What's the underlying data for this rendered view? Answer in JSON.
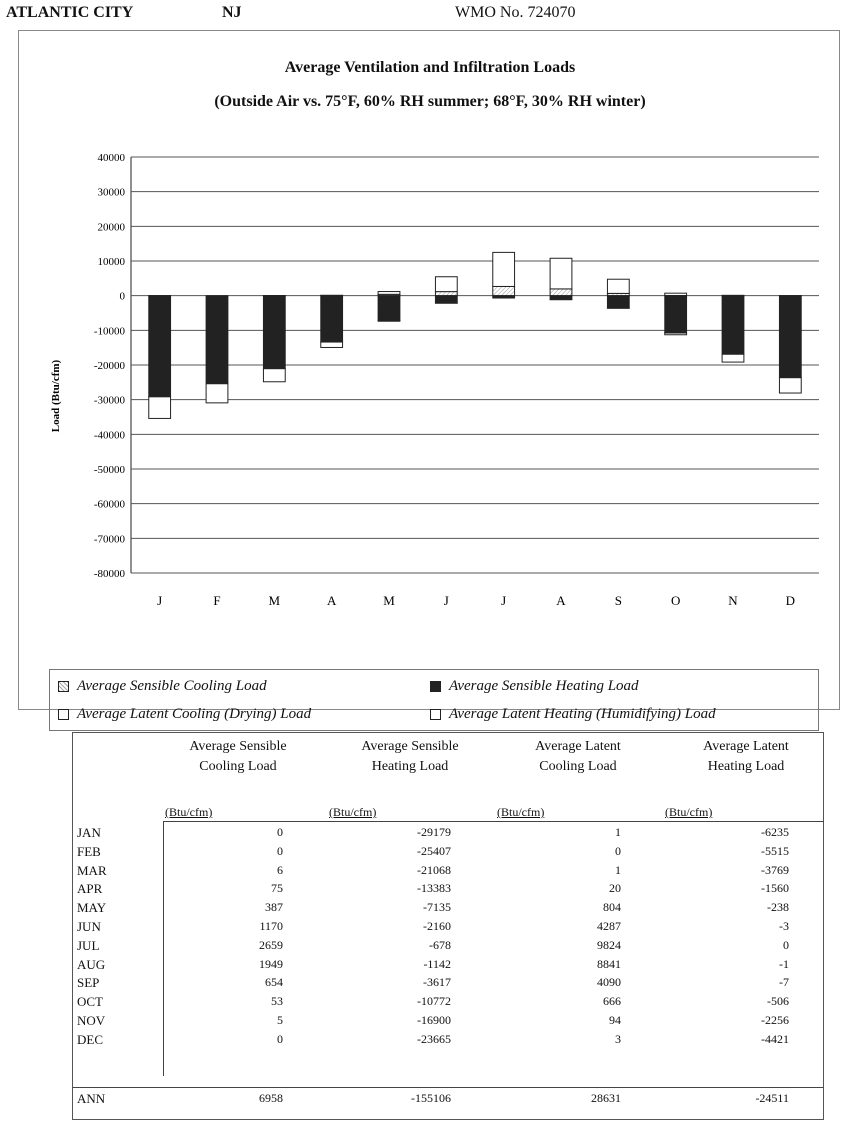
{
  "header": {
    "city": "ATLANTIC CITY",
    "state": "NJ",
    "wmo": "WMO No. 724070"
  },
  "chart_data": {
    "type": "bar",
    "title": "Average Ventilation and Infiltration Loads",
    "subtitle": "(Outside Air vs. 75°F, 60% RH summer; 68°F, 30% RH winter)",
    "ylabel": "Load (Btu/cfm)",
    "xlabel": "",
    "ylim": [
      -80000,
      40000
    ],
    "yticks": [
      "40000",
      "30000",
      "20000",
      "10000",
      "0",
      "-10000",
      "-20000",
      "-30000",
      "-40000",
      "-50000",
      "-60000",
      "-70000",
      "-80000"
    ],
    "categories": [
      "J",
      "F",
      "M",
      "A",
      "M",
      "J",
      "J",
      "A",
      "S",
      "O",
      "N",
      "D"
    ],
    "stacked": true,
    "grid": true,
    "legend_position": "bottom",
    "series": [
      {
        "name": "Average Sensible Cooling Load",
        "fill": "hatch",
        "values": [
          0,
          0,
          6,
          75,
          387,
          1170,
          2659,
          1949,
          654,
          53,
          5,
          0
        ]
      },
      {
        "name": "Average Latent Cooling (Drying) Load",
        "fill": "white",
        "values": [
          1,
          0,
          1,
          20,
          804,
          4287,
          9824,
          8841,
          4090,
          666,
          94,
          3
        ]
      },
      {
        "name": "Average Sensible Heating Load",
        "fill": "dark",
        "values": [
          -29179,
          -25407,
          -21068,
          -13383,
          -7135,
          -2160,
          -678,
          -1142,
          -3617,
          -10772,
          -16900,
          -23665
        ]
      },
      {
        "name": "Average Latent Heating (Humidifying) Load",
        "fill": "white",
        "values": [
          -6235,
          -5515,
          -3769,
          -1560,
          -238,
          -3,
          0,
          -1,
          -7,
          -506,
          -2256,
          -4421
        ]
      }
    ]
  },
  "legend": {
    "sensible_cooling": "Average Sensible Cooling Load",
    "sensible_heating": "Average Sensible Heating Load",
    "latent_cooling": "Average Latent Cooling (Drying) Load",
    "latent_heating": "Average Latent Heating (Humidifying) Load"
  },
  "table": {
    "headers": [
      [
        "Average Sensible",
        "Cooling Load"
      ],
      [
        "Average Sensible",
        "Heating Load"
      ],
      [
        "Average Latent",
        "Cooling Load"
      ],
      [
        "Average Latent",
        "Heating Load"
      ]
    ],
    "unit": "(Btu/cfm)",
    "rows": [
      [
        "JAN",
        "0",
        "-29179",
        "1",
        "-6235"
      ],
      [
        "FEB",
        "0",
        "-25407",
        "0",
        "-5515"
      ],
      [
        "MAR",
        "6",
        "-21068",
        "1",
        "-3769"
      ],
      [
        "APR",
        "75",
        "-13383",
        "20",
        "-1560"
      ],
      [
        "MAY",
        "387",
        "-7135",
        "804",
        "-238"
      ],
      [
        "JUN",
        "1170",
        "-2160",
        "4287",
        "-3"
      ],
      [
        "JUL",
        "2659",
        "-678",
        "9824",
        "0"
      ],
      [
        "AUG",
        "1949",
        "-1142",
        "8841",
        "-1"
      ],
      [
        "SEP",
        "654",
        "-3617",
        "4090",
        "-7"
      ],
      [
        "OCT",
        "53",
        "-10772",
        "666",
        "-506"
      ],
      [
        "NOV",
        "5",
        "-16900",
        "94",
        "-2256"
      ],
      [
        "DEC",
        "0",
        "-23665",
        "3",
        "-4421"
      ],
      [
        "ANN",
        "6958",
        "-155106",
        "28631",
        "-24511"
      ]
    ]
  }
}
